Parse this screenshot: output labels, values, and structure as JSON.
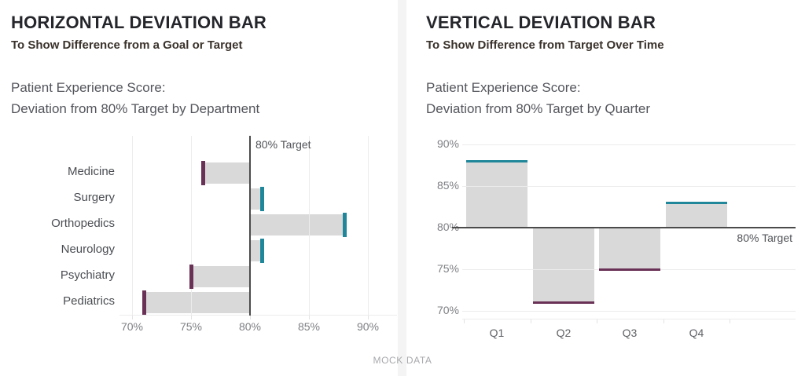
{
  "page": {
    "footer_note": "MOCK DATA",
    "divider_color": "#f4f4f5",
    "background_color": "#ffffff"
  },
  "left_panel": {
    "title": "HORIZONTAL DEVIATION BAR",
    "subtitle": "To Show Difference from a Goal or Target",
    "heading_line1": "Patient Experience Score:",
    "heading_line2": "Deviation from 80% Target by Department"
  },
  "right_panel": {
    "title": "VERTICAL DEVIATION BAR",
    "subtitle": "To Show Difference from Target Over Time",
    "heading_line1": "Patient Experience Score:",
    "heading_line2": "Deviation from 80% Target by Quarter"
  },
  "chart_data": [
    {
      "type": "bar",
      "orientation": "horizontal",
      "title": "Patient Experience Score: Deviation from 80% Target by Department",
      "categories": [
        "Medicine",
        "Surgery",
        "Orthopedics",
        "Neurology",
        "Psychiatry",
        "Pediatrics"
      ],
      "values": [
        76,
        81,
        88,
        81,
        75,
        71
      ],
      "target": 80,
      "target_label": "80% Target",
      "tick_values": [
        70,
        75,
        80,
        85,
        90
      ],
      "tick_labels": [
        "70%",
        "75%",
        "80%",
        "85%",
        "90%"
      ],
      "xlim": [
        69,
        92
      ],
      "grid": true,
      "gridlines_over_bars": true,
      "colors": {
        "bar_fill": "#d9d9d9",
        "above_target": "#20879b",
        "below_target": "#6a3157",
        "target_line": "#4b4b4b",
        "gridline": "#ececec"
      }
    },
    {
      "type": "bar",
      "orientation": "vertical",
      "title": "Patient Experience Score: Deviation from 80% Target by Quarter",
      "categories": [
        "Q1",
        "Q2",
        "Q3",
        "Q4"
      ],
      "values": [
        88,
        71,
        75,
        83
      ],
      "target": 80,
      "target_label": "80% Target",
      "tick_values": [
        70,
        75,
        80,
        85,
        90
      ],
      "tick_labels": [
        "70%",
        "75%",
        "80%",
        "85%",
        "90%"
      ],
      "ylim": [
        69.5,
        90.5
      ],
      "grid": true,
      "gridlines_over_bars": true,
      "colors": {
        "bar_fill": "#d9d9d9",
        "above_target": "#20879b",
        "below_target": "#6a3157",
        "target_line": "#4b4b4b",
        "gridline": "#ececec"
      }
    }
  ]
}
